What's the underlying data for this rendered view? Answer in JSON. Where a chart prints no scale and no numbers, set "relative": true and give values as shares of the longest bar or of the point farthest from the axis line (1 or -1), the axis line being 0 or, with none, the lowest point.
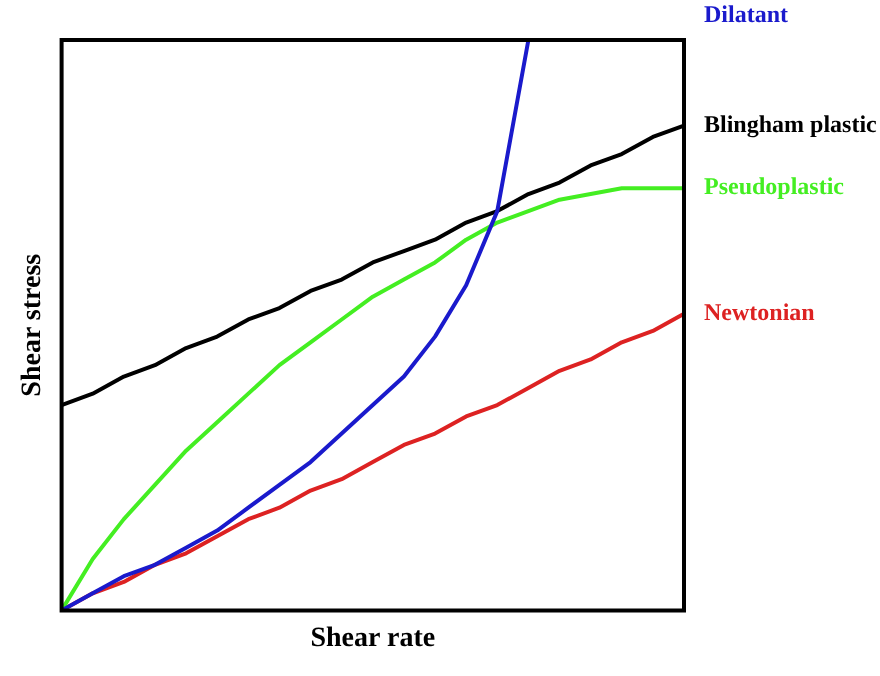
{
  "chart_data": {
    "type": "line",
    "xlabel": "Shear rate",
    "ylabel": "Shear stress",
    "relative": true,
    "tick_labels": false,
    "grid": false,
    "legend": false,
    "marker": "none",
    "line_style": "solid",
    "categories": [
      null,
      null,
      null,
      null,
      null,
      null,
      null,
      null,
      null,
      null,
      null,
      null,
      null,
      null,
      null,
      null,
      null,
      null,
      null,
      null,
      null
    ],
    "series": [
      {
        "name": "Dilatant",
        "color": "#1a1acc",
        "values": [
          0,
          0.03,
          0.06,
          0.08,
          0.11,
          0.14,
          0.18,
          0.22,
          0.26,
          0.31,
          0.36,
          0.41,
          0.48,
          0.57,
          0.7,
          1.0,
          null,
          null,
          null,
          null,
          null
        ]
      },
      {
        "name": "Blingham plastic",
        "color": "#000000",
        "values": [
          0.36,
          0.38,
          0.41,
          0.43,
          0.46,
          0.48,
          0.51,
          0.53,
          0.56,
          0.58,
          0.61,
          0.63,
          0.65,
          0.68,
          0.7,
          0.73,
          0.75,
          0.78,
          0.8,
          0.83,
          0.85
        ]
      },
      {
        "name": "Pseudoplastic",
        "color": "#44ee22",
        "values": [
          0,
          0.09,
          0.16,
          0.22,
          0.28,
          0.33,
          0.38,
          0.43,
          0.47,
          0.51,
          0.55,
          0.58,
          0.61,
          0.65,
          0.68,
          0.7,
          0.72,
          0.73,
          0.74,
          0.74,
          0.74
        ]
      },
      {
        "name": "Newtonian",
        "color": "#dd2222",
        "values": [
          0,
          0.03,
          0.05,
          0.08,
          0.1,
          0.13,
          0.16,
          0.18,
          0.21,
          0.23,
          0.26,
          0.29,
          0.31,
          0.34,
          0.36,
          0.39,
          0.42,
          0.44,
          0.47,
          0.49,
          0.52
        ]
      }
    ]
  }
}
